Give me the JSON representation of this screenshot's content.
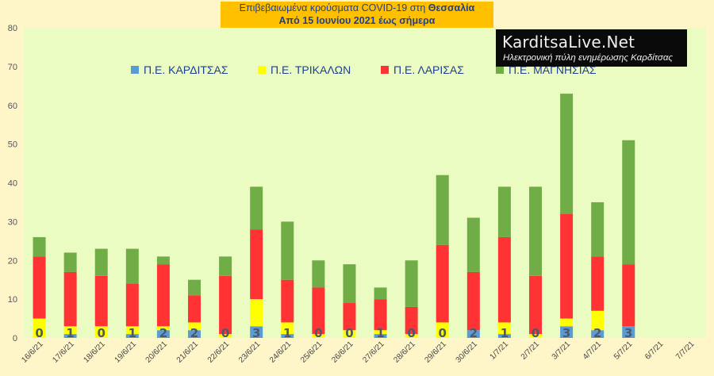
{
  "title": {
    "line1_prefix": "Επιβεβαιωμένα κρούσματα COVID-19 στη ",
    "line1_bold": "Θεσσαλία",
    "line2": "Από 15 Ιουνίου 2021 έως σήμερα"
  },
  "logo": {
    "name": "KarditsaLive.Net",
    "subtitle": "Ηλεκτρονική πύλη ενημέρωσης Καρδίτσας"
  },
  "colors": {
    "background": "#fef6c8",
    "plot_area": "#ebfcc2",
    "karditsa": "#5b9bd5",
    "trikala": "#ffff00",
    "larisa": "#ff3333",
    "magnisia": "#70ad47",
    "label_text": "#4a5a6a"
  },
  "chart_data": {
    "type": "bar",
    "stacked": true,
    "categories": [
      "16/6/21",
      "17/6/21",
      "18/6/21",
      "19/6/21",
      "20/6/21",
      "21/6/21",
      "22/6/21",
      "23/6/21",
      "24/6/21",
      "25/6/21",
      "26/6/21",
      "27/6/21",
      "28/6/21",
      "29/6/21",
      "30/6/21",
      "1/7/21",
      "2/7/21",
      "3/7/21",
      "4/7/21",
      "5/7/21",
      "6/7/21",
      "7/7/21"
    ],
    "series": [
      {
        "name": "Π.Ε. ΚΑΡΔΙΤΣΑΣ",
        "color": "#5b9bd5",
        "values": [
          0,
          1,
          0,
          1,
          2,
          2,
          0,
          3,
          1,
          0,
          0,
          1,
          0,
          0,
          2,
          1,
          0,
          3,
          2,
          3,
          0,
          0
        ]
      },
      {
        "name": "Π.Ε. ΤΡΙΚΑΛΩΝ",
        "color": "#ffff00",
        "values": [
          5,
          2,
          3,
          2,
          1,
          2,
          1,
          7,
          3,
          1,
          2,
          1,
          1,
          4,
          0,
          3,
          1,
          2,
          5,
          0,
          0,
          0
        ]
      },
      {
        "name": "Π.Ε. ΛΑΡΙΣΑΣ",
        "color": "#ff3333",
        "values": [
          16,
          14,
          13,
          11,
          16,
          7,
          15,
          18,
          11,
          12,
          7,
          8,
          7,
          20,
          15,
          22,
          15,
          27,
          14,
          16,
          0,
          0
        ]
      },
      {
        "name": "Π.Ε. ΜΑΓΝΗΣΙΑΣ",
        "color": "#70ad47",
        "values": [
          5,
          5,
          7,
          9,
          2,
          4,
          5,
          11,
          15,
          7,
          10,
          3,
          12,
          18,
          14,
          13,
          23,
          31,
          14,
          32,
          0,
          0
        ]
      }
    ],
    "data_labels": [
      "0",
      "1",
      "0",
      "1",
      "2",
      "2",
      "0",
      "3",
      "1",
      "0",
      "0",
      "1",
      "0",
      "0",
      "2",
      "1",
      "0",
      "3",
      "2",
      "3",
      "",
      ""
    ],
    "ylim": [
      0,
      80
    ],
    "yticks": [
      0,
      10,
      20,
      30,
      40,
      50,
      60,
      70,
      80
    ],
    "grid": false,
    "legend_position": "top"
  }
}
